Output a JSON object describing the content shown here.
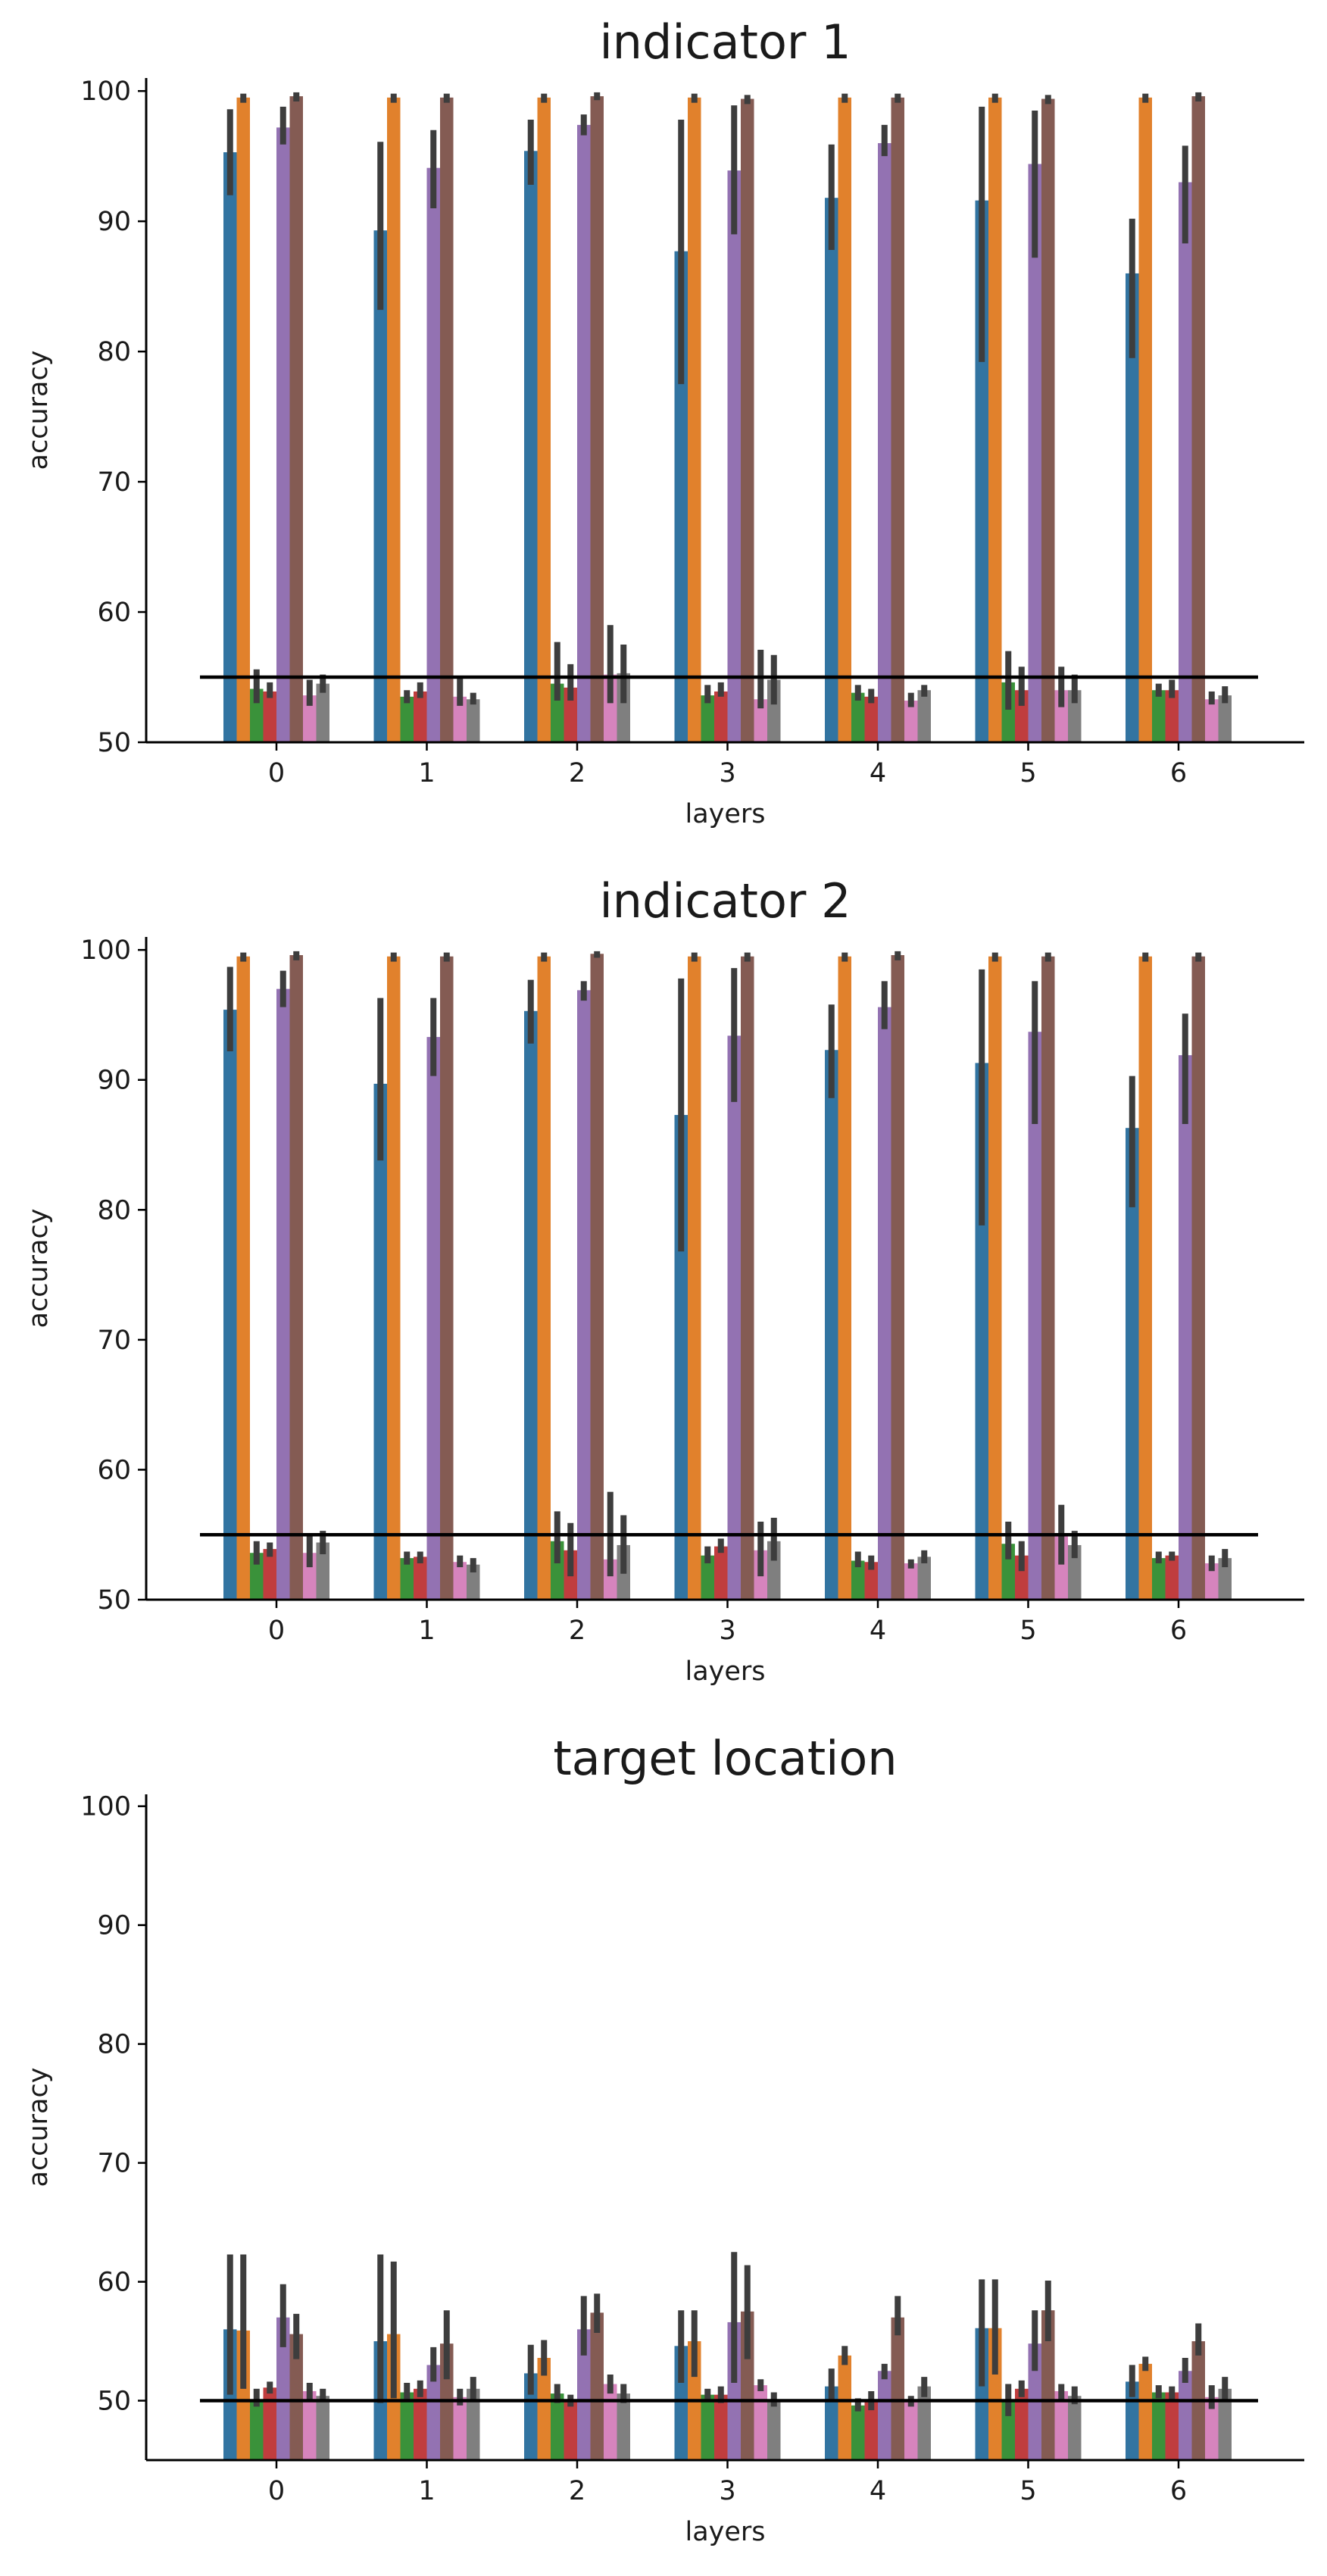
{
  "palette": [
    "#3274a1",
    "#e1812c",
    "#3a923a",
    "#c03d3e",
    "#9372b2",
    "#845b53",
    "#d684bd",
    "#7f7f7f"
  ],
  "chart_data": [
    {
      "type": "bar",
      "title": "indicator 1",
      "xlabel": "layers",
      "ylabel": "accuracy",
      "ylim": [
        50,
        101
      ],
      "yticks": [
        50,
        60,
        70,
        80,
        90,
        100
      ],
      "categories": [
        "0",
        "1",
        "2",
        "3",
        "4",
        "5",
        "6"
      ],
      "baseline": 55,
      "grid": false,
      "series": [
        {
          "values": [
            95.3,
            89.3,
            95.4,
            87.7,
            91.8,
            91.6,
            86.0
          ],
          "err": [
            [
              92.0,
              98.6
            ],
            [
              83.2,
              96.1
            ],
            [
              92.8,
              97.8
            ],
            [
              77.5,
              97.8
            ],
            [
              87.8,
              95.9
            ],
            [
              79.2,
              98.8
            ],
            [
              79.5,
              90.2
            ]
          ]
        },
        {
          "values": [
            99.5,
            99.5,
            99.5,
            99.5,
            99.5,
            99.5,
            99.5
          ],
          "err": [
            [
              99.1,
              99.8
            ],
            [
              99.1,
              99.8
            ],
            [
              99.1,
              99.8
            ],
            [
              99.1,
              99.8
            ],
            [
              99.1,
              99.8
            ],
            [
              99.1,
              99.8
            ],
            [
              99.1,
              99.8
            ]
          ]
        },
        {
          "values": [
            54.1,
            53.5,
            54.5,
            53.6,
            53.8,
            54.6,
            54.0
          ],
          "err": [
            [
              53.0,
              55.6
            ],
            [
              53.0,
              54.0
            ],
            [
              53.2,
              57.7
            ],
            [
              53.0,
              54.4
            ],
            [
              53.2,
              54.4
            ],
            [
              52.5,
              57.0
            ],
            [
              53.5,
              54.5
            ]
          ]
        },
        {
          "values": [
            53.9,
            53.9,
            54.2,
            53.9,
            53.5,
            54.0,
            54.0
          ],
          "err": [
            [
              53.4,
              54.6
            ],
            [
              53.4,
              54.6
            ],
            [
              53.2,
              56.0
            ],
            [
              53.5,
              54.6
            ],
            [
              53.0,
              54.1
            ],
            [
              52.8,
              55.8
            ],
            [
              53.4,
              54.8
            ]
          ]
        },
        {
          "values": [
            97.2,
            94.1,
            97.4,
            93.9,
            96.0,
            94.4,
            93.0
          ],
          "err": [
            [
              95.9,
              98.8
            ],
            [
              91.0,
              97.0
            ],
            [
              96.6,
              98.2
            ],
            [
              89.0,
              98.9
            ],
            [
              95.0,
              97.4
            ],
            [
              87.2,
              98.5
            ],
            [
              88.3,
              95.8
            ]
          ]
        },
        {
          "values": [
            99.6,
            99.5,
            99.6,
            99.4,
            99.5,
            99.4,
            99.6
          ],
          "err": [
            [
              99.2,
              99.9
            ],
            [
              99.1,
              99.8
            ],
            [
              99.3,
              99.9
            ],
            [
              99.0,
              99.7
            ],
            [
              99.1,
              99.8
            ],
            [
              99.0,
              99.7
            ],
            [
              99.2,
              99.9
            ]
          ]
        },
        {
          "values": [
            53.6,
            53.5,
            55.2,
            53.3,
            53.2,
            54.0,
            53.3
          ],
          "err": [
            [
              52.8,
              54.8
            ],
            [
              52.8,
              55.0
            ],
            [
              53.0,
              59.0
            ],
            [
              52.6,
              57.1
            ],
            [
              52.7,
              53.8
            ],
            [
              52.7,
              55.8
            ],
            [
              52.9,
              53.9
            ]
          ]
        },
        {
          "values": [
            54.5,
            53.3,
            55.3,
            54.8,
            54.0,
            54.0,
            53.6
          ],
          "err": [
            [
              53.8,
              55.2
            ],
            [
              52.9,
              53.8
            ],
            [
              53.0,
              57.5
            ],
            [
              52.9,
              56.7
            ],
            [
              53.5,
              54.4
            ],
            [
              53.0,
              55.2
            ],
            [
              53.0,
              54.3
            ]
          ]
        }
      ]
    },
    {
      "type": "bar",
      "title": "indicator 2",
      "xlabel": "layers",
      "ylabel": "accuracy",
      "ylim": [
        50,
        101
      ],
      "yticks": [
        50,
        60,
        70,
        80,
        90,
        100
      ],
      "categories": [
        "0",
        "1",
        "2",
        "3",
        "4",
        "5",
        "6"
      ],
      "baseline": 55,
      "grid": false,
      "series": [
        {
          "values": [
            95.4,
            89.7,
            95.3,
            87.3,
            92.3,
            91.3,
            86.3
          ],
          "err": [
            [
              92.2,
              98.7
            ],
            [
              83.8,
              96.3
            ],
            [
              92.8,
              97.7
            ],
            [
              76.8,
              97.8
            ],
            [
              88.6,
              95.8
            ],
            [
              78.8,
              98.5
            ],
            [
              80.2,
              90.3
            ]
          ]
        },
        {
          "values": [
            99.5,
            99.5,
            99.5,
            99.5,
            99.5,
            99.5,
            99.5
          ],
          "err": [
            [
              99.1,
              99.8
            ],
            [
              99.1,
              99.8
            ],
            [
              99.1,
              99.8
            ],
            [
              99.1,
              99.8
            ],
            [
              99.1,
              99.8
            ],
            [
              99.1,
              99.8
            ],
            [
              99.1,
              99.8
            ]
          ]
        },
        {
          "values": [
            53.6,
            53.2,
            54.5,
            53.4,
            53.0,
            54.3,
            53.2
          ],
          "err": [
            [
              52.7,
              54.5
            ],
            [
              52.7,
              53.7
            ],
            [
              52.8,
              56.8
            ],
            [
              52.8,
              54.1
            ],
            [
              52.5,
              53.7
            ],
            [
              53.1,
              56.0
            ],
            [
              52.8,
              53.7
            ]
          ]
        },
        {
          "values": [
            53.9,
            53.3,
            53.8,
            54.1,
            52.9,
            53.4,
            53.4
          ],
          "err": [
            [
              53.3,
              54.4
            ],
            [
              52.8,
              53.7
            ],
            [
              51.8,
              55.9
            ],
            [
              53.6,
              54.7
            ],
            [
              52.3,
              53.4
            ],
            [
              52.2,
              54.5
            ],
            [
              53.0,
              53.7
            ]
          ]
        },
        {
          "values": [
            97.0,
            93.3,
            96.9,
            93.4,
            95.6,
            93.7,
            91.9
          ],
          "err": [
            [
              95.6,
              98.4
            ],
            [
              90.3,
              96.3
            ],
            [
              96.1,
              97.6
            ],
            [
              88.3,
              98.6
            ],
            [
              93.9,
              97.6
            ],
            [
              86.6,
              97.6
            ],
            [
              86.6,
              95.1
            ]
          ]
        },
        {
          "values": [
            99.6,
            99.5,
            99.7,
            99.5,
            99.6,
            99.5,
            99.5
          ],
          "err": [
            [
              99.2,
              99.9
            ],
            [
              99.1,
              99.8
            ],
            [
              99.4,
              99.9
            ],
            [
              99.1,
              99.8
            ],
            [
              99.2,
              99.9
            ],
            [
              99.1,
              99.8
            ],
            [
              99.1,
              99.8
            ]
          ]
        },
        {
          "values": [
            53.6,
            52.9,
            53.1,
            53.8,
            52.8,
            54.9,
            52.8
          ],
          "err": [
            [
              52.5,
              55.0
            ],
            [
              52.5,
              53.4
            ],
            [
              51.8,
              58.3
            ],
            [
              51.8,
              56.0
            ],
            [
              52.4,
              53.1
            ],
            [
              52.7,
              57.3
            ],
            [
              52.2,
              53.4
            ]
          ]
        },
        {
          "values": [
            54.4,
            52.7,
            54.2,
            54.5,
            53.3,
            54.2,
            53.2
          ],
          "err": [
            [
              53.5,
              55.3
            ],
            [
              52.1,
              53.2
            ],
            [
              52.0,
              56.5
            ],
            [
              53.0,
              56.3
            ],
            [
              52.8,
              53.8
            ],
            [
              53.2,
              55.3
            ],
            [
              52.5,
              53.9
            ]
          ]
        }
      ]
    },
    {
      "type": "bar",
      "title": "target location",
      "xlabel": "layers",
      "ylabel": "accuracy",
      "ylim": [
        45,
        101
      ],
      "yticks": [
        50,
        60,
        70,
        80,
        90,
        100
      ],
      "categories": [
        "0",
        "1",
        "2",
        "3",
        "4",
        "5",
        "6"
      ],
      "baseline": 50,
      "grid": false,
      "series": [
        {
          "values": [
            56.0,
            55.0,
            52.3,
            54.6,
            51.2,
            56.1,
            51.6
          ],
          "err": [
            [
              50.5,
              62.3
            ],
            [
              49.8,
              62.3
            ],
            [
              50.5,
              54.7
            ],
            [
              51.5,
              57.6
            ],
            [
              50.0,
              52.7
            ],
            [
              51.2,
              60.2
            ],
            [
              50.3,
              53.0
            ]
          ]
        },
        {
          "values": [
            55.9,
            55.6,
            53.6,
            55.0,
            53.8,
            56.1,
            53.1
          ],
          "err": [
            [
              51.0,
              62.3
            ],
            [
              50.2,
              61.7
            ],
            [
              52.1,
              55.1
            ],
            [
              52.0,
              57.6
            ],
            [
              53.0,
              54.6
            ],
            [
              52.2,
              60.2
            ],
            [
              52.5,
              53.7
            ]
          ]
        },
        {
          "values": [
            50.0,
            50.7,
            50.6,
            50.5,
            49.6,
            50.0,
            50.7
          ],
          "err": [
            [
              49.5,
              51.0
            ],
            [
              50.0,
              51.5
            ],
            [
              49.8,
              51.4
            ],
            [
              50.0,
              51.0
            ],
            [
              49.1,
              50.2
            ],
            [
              48.7,
              51.4
            ],
            [
              50.2,
              51.3
            ]
          ]
        },
        {
          "values": [
            51.1,
            51.0,
            50.0,
            50.5,
            50.0,
            51.0,
            50.7
          ],
          "err": [
            [
              50.6,
              51.6
            ],
            [
              50.3,
              51.7
            ],
            [
              49.5,
              50.5
            ],
            [
              49.8,
              51.2
            ],
            [
              49.2,
              50.8
            ],
            [
              50.3,
              51.7
            ],
            [
              50.0,
              51.2
            ]
          ]
        },
        {
          "values": [
            57.0,
            53.0,
            56.0,
            56.6,
            52.5,
            54.8,
            52.5
          ],
          "err": [
            [
              54.5,
              59.8
            ],
            [
              51.6,
              54.5
            ],
            [
              53.8,
              58.8
            ],
            [
              51.5,
              62.5
            ],
            [
              51.8,
              53.1
            ],
            [
              52.5,
              57.6
            ],
            [
              51.5,
              53.6
            ]
          ]
        },
        {
          "values": [
            55.6,
            54.8,
            57.4,
            57.5,
            57.0,
            57.6,
            55.0
          ],
          "err": [
            [
              53.5,
              57.3
            ],
            [
              51.8,
              57.6
            ],
            [
              55.7,
              59.0
            ],
            [
              53.5,
              61.4
            ],
            [
              55.5,
              58.8
            ],
            [
              55.0,
              60.1
            ],
            [
              53.8,
              56.5
            ]
          ]
        },
        {
          "values": [
            50.8,
            50.3,
            51.4,
            51.3,
            49.9,
            50.8,
            50.3
          ],
          "err": [
            [
              50.0,
              51.5
            ],
            [
              49.6,
              51.0
            ],
            [
              50.6,
              52.2
            ],
            [
              50.8,
              51.8
            ],
            [
              49.5,
              50.4
            ],
            [
              50.0,
              51.4
            ],
            [
              49.3,
              51.3
            ]
          ]
        },
        {
          "values": [
            50.4,
            51.0,
            50.6,
            50.1,
            51.2,
            50.4,
            51.0
          ],
          "err": [
            [
              49.9,
              51.0
            ],
            [
              50.0,
              52.0
            ],
            [
              49.8,
              51.4
            ],
            [
              49.5,
              50.7
            ],
            [
              50.3,
              52.0
            ],
            [
              49.7,
              51.2
            ],
            [
              50.1,
              52.0
            ]
          ]
        }
      ]
    }
  ]
}
